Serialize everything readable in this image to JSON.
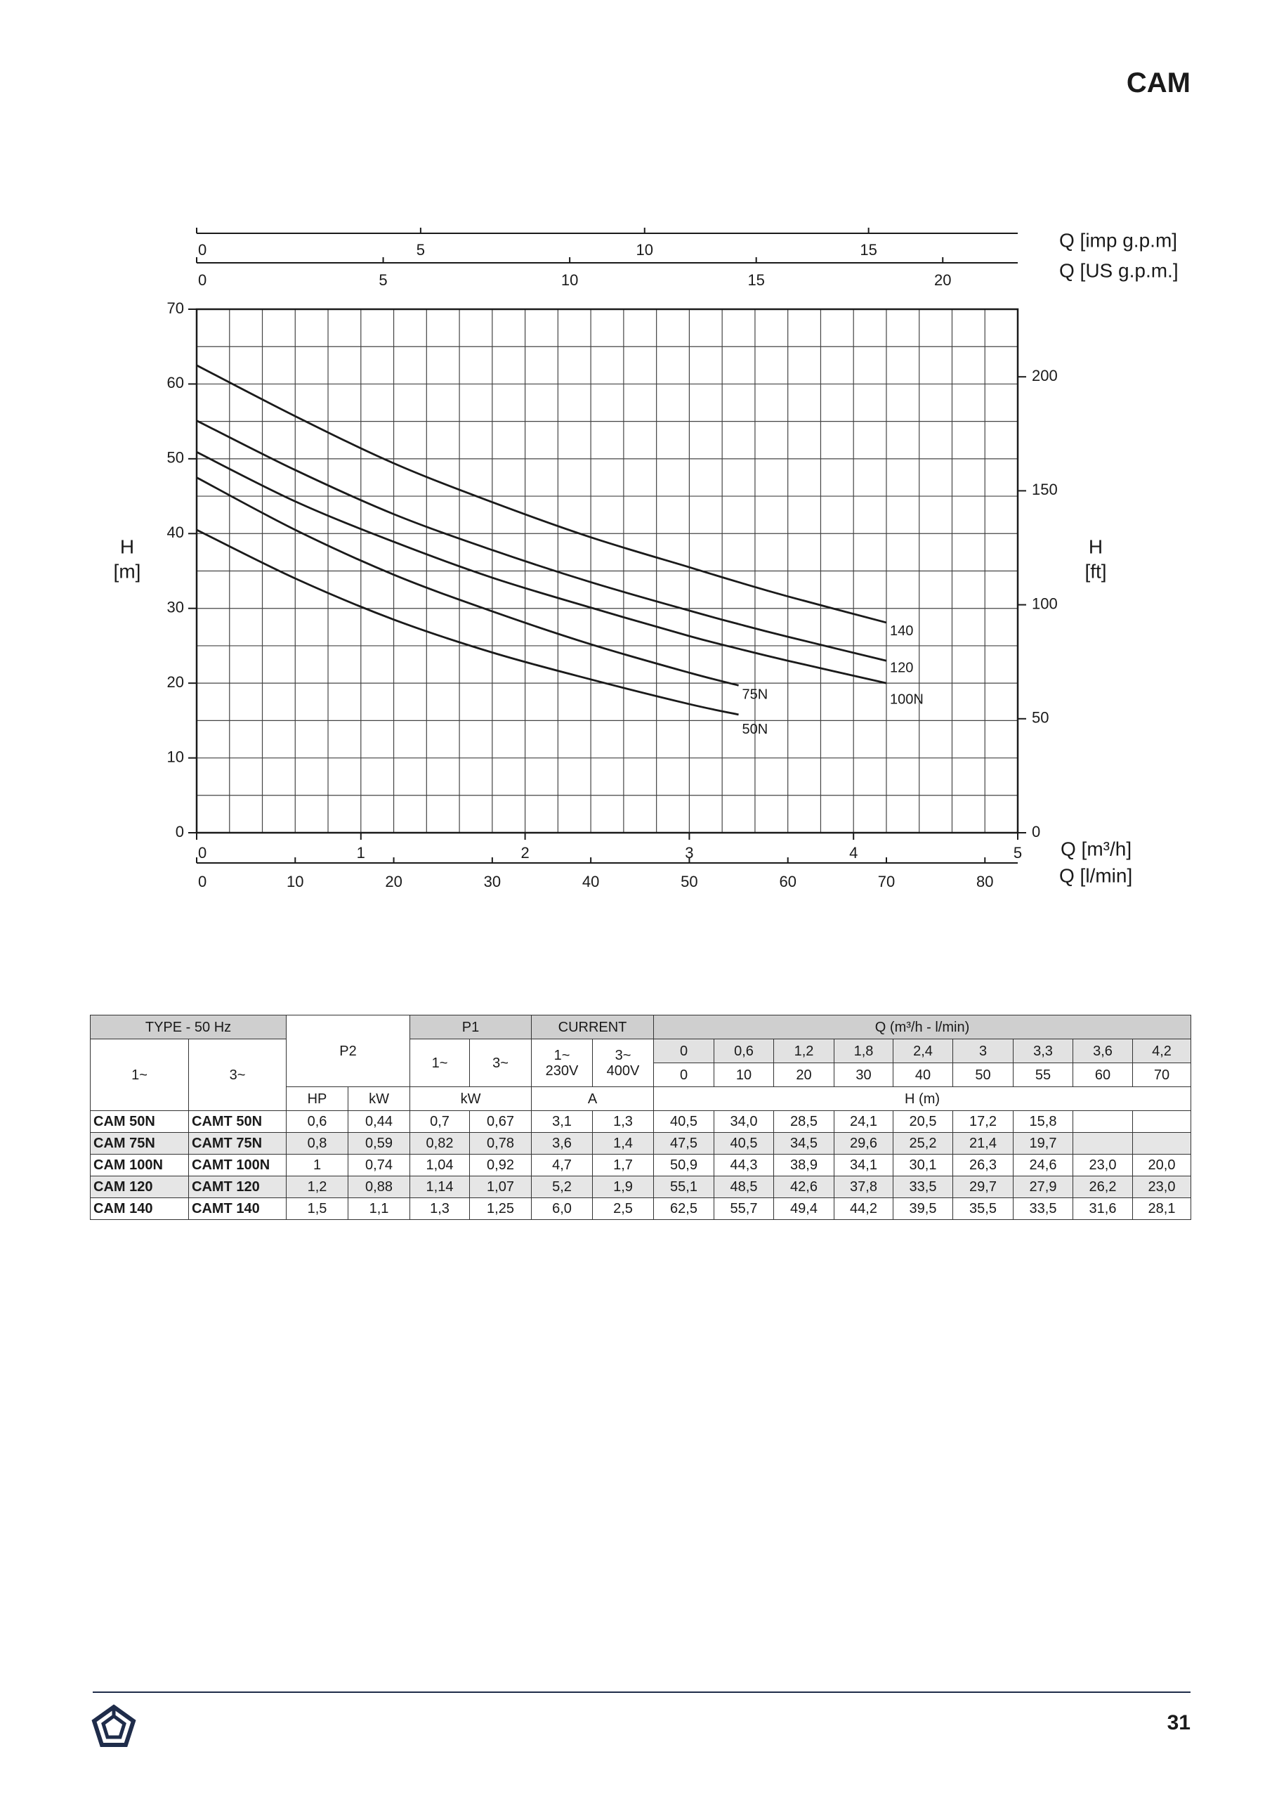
{
  "header": {
    "title": "CAM"
  },
  "chart_data": {
    "type": "line",
    "ylabel": [
      "H",
      "[m]"
    ],
    "y2label": [
      "H",
      "[ft]"
    ],
    "xlabel": "Q [m³/h]",
    "x": [
      0,
      0.6,
      1.2,
      1.8,
      2.4,
      3,
      3.3,
      3.6,
      4.2
    ],
    "xlim": [
      0,
      5
    ],
    "xticks": [
      0,
      1,
      2,
      3,
      4,
      5
    ],
    "ylim": [
      0,
      70
    ],
    "yticks": [
      0,
      10,
      20,
      30,
      40,
      50,
      60,
      70
    ],
    "y2lim": [
      0,
      229.66
    ],
    "y2ticks": [
      0,
      50,
      100,
      150,
      200
    ],
    "grid": true,
    "xgrid": [
      0,
      0.2,
      0.4,
      0.6,
      0.8,
      1,
      1.2,
      1.4,
      1.6,
      1.8,
      2,
      2.2,
      2.4,
      2.6,
      2.8,
      3,
      3.2,
      3.4,
      3.6,
      3.8,
      4,
      4.2,
      4.4,
      4.6,
      4.8,
      5
    ],
    "ygrid": [
      0,
      5,
      10,
      15,
      20,
      25,
      30,
      35,
      40,
      45,
      50,
      55,
      60,
      65,
      70
    ],
    "extra_x_axes": [
      {
        "position": "top",
        "label": "Q [imp g.p.m]",
        "lim": [
          0,
          18.33
        ],
        "ticks": [
          0,
          5,
          10,
          15
        ]
      },
      {
        "position": "top",
        "label": "Q [US g.p.m.]",
        "lim": [
          0,
          22.01
        ],
        "ticks": [
          0,
          5,
          10,
          15,
          20
        ]
      },
      {
        "position": "bottom",
        "label": "Q [l/min]",
        "lim": [
          0,
          83.33
        ],
        "ticks": [
          0,
          10,
          20,
          30,
          40,
          50,
          60,
          70,
          80
        ]
      }
    ],
    "series": [
      {
        "name": "50N",
        "color": "#1a1a1a",
        "values": [
          40.5,
          34.0,
          28.5,
          24.1,
          20.5,
          17.2,
          15.8,
          null,
          null
        ]
      },
      {
        "name": "75N",
        "color": "#1a1a1a",
        "values": [
          47.5,
          40.5,
          34.5,
          29.6,
          25.2,
          21.4,
          19.7,
          null,
          null
        ]
      },
      {
        "name": "100N",
        "color": "#1a1a1a",
        "values": [
          50.9,
          44.3,
          38.9,
          34.1,
          30.1,
          26.3,
          24.6,
          23.0,
          20.0
        ]
      },
      {
        "name": "120",
        "color": "#1a1a1a",
        "values": [
          55.1,
          48.5,
          42.6,
          37.8,
          33.5,
          29.7,
          27.9,
          26.2,
          23.0
        ]
      },
      {
        "name": "140",
        "color": "#1a1a1a",
        "values": [
          62.5,
          55.7,
          49.4,
          44.2,
          39.5,
          35.5,
          33.5,
          31.6,
          28.1
        ]
      }
    ]
  },
  "table": {
    "header": {
      "type": "TYPE - 50 Hz",
      "type_1": "1~",
      "type_3": "3~",
      "p2": "P2",
      "p2_hp": "HP",
      "p2_kw": "kW",
      "p1": "P1",
      "p1_1": "1~",
      "p1_3": "3~",
      "p1_unit": "kW",
      "current": "CURRENT",
      "current_1": [
        "1~",
        "230V"
      ],
      "current_3": [
        "3~",
        "400V"
      ],
      "current_unit": "A",
      "q": "Q (m³/h - l/min)",
      "q_m3h": [
        "0",
        "0,6",
        "1,2",
        "1,8",
        "2,4",
        "3",
        "3,3",
        "3,6",
        "4,2"
      ],
      "q_lmin": [
        "0",
        "10",
        "20",
        "30",
        "40",
        "50",
        "55",
        "60",
        "70"
      ],
      "h": "H (m)"
    },
    "rows": [
      [
        "CAM 50N",
        "CAMT 50N",
        "0,6",
        "0,44",
        "0,7",
        "0,67",
        "3,1",
        "1,3",
        "40,5",
        "34,0",
        "28,5",
        "24,1",
        "20,5",
        "17,2",
        "15,8",
        null,
        null
      ],
      [
        "CAM 75N",
        "CAMT 75N",
        "0,8",
        "0,59",
        "0,82",
        "0,78",
        "3,6",
        "1,4",
        "47,5",
        "40,5",
        "34,5",
        "29,6",
        "25,2",
        "21,4",
        "19,7",
        null,
        null
      ],
      [
        "CAM 100N",
        "CAMT 100N",
        "1",
        "0,74",
        "1,04",
        "0,92",
        "4,7",
        "1,7",
        "50,9",
        "44,3",
        "38,9",
        "34,1",
        "30,1",
        "26,3",
        "24,6",
        "23,0",
        "20,0"
      ],
      [
        "CAM 120",
        "CAMT 120",
        "1,2",
        "0,88",
        "1,14",
        "1,07",
        "5,2",
        "1,9",
        "55,1",
        "48,5",
        "42,6",
        "37,8",
        "33,5",
        "29,7",
        "27,9",
        "26,2",
        "23,0"
      ],
      [
        "CAM 140",
        "CAMT 140",
        "1,5",
        "1,1",
        "1,3",
        "1,25",
        "6,0",
        "2,5",
        "62,5",
        "55,7",
        "49,4",
        "44,2",
        "39,5",
        "35,5",
        "33,5",
        "31,6",
        "28,1"
      ]
    ]
  },
  "footer": {
    "page": "31"
  }
}
